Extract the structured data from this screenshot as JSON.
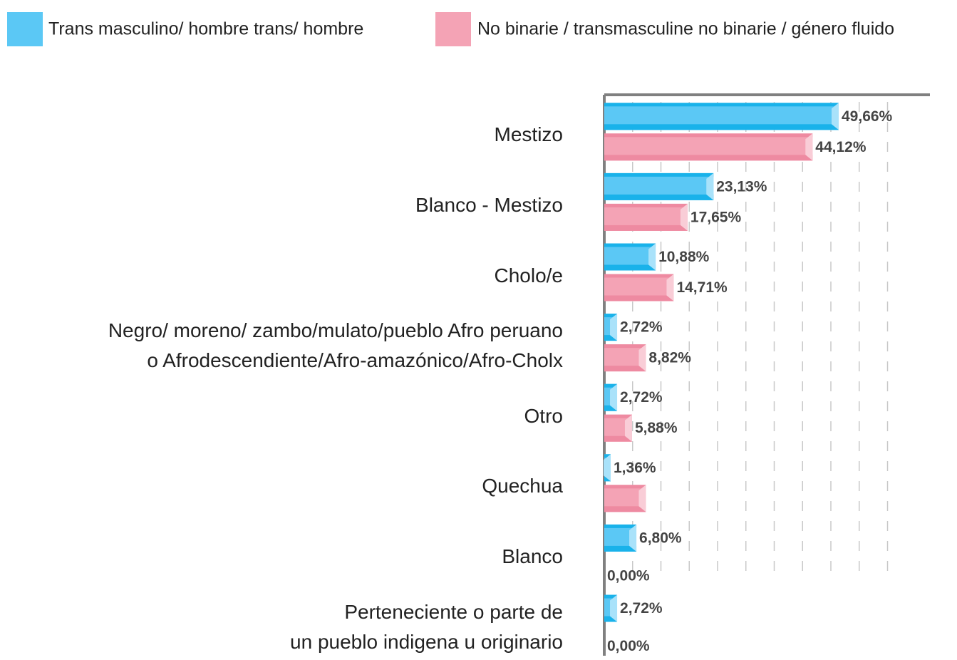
{
  "chart_data": {
    "type": "bar",
    "orientation": "horizontal",
    "categories": [
      "Mestizo",
      "Blanco - Mestizo",
      "Cholo/e",
      "Negro/ moreno/ zambo/mulato/pueblo Afro peruano\no Afrodescendiente/Afro-amazónico/Afro-Cholx",
      "Otro",
      "Quechua",
      "Blanco",
      "Perteneciente o parte de\nun pueblo indigena u originario"
    ],
    "series": [
      {
        "name": "Trans masculino/ hombre trans/ hombre",
        "color": "#5bc8f5",
        "values": [
          49.66,
          23.13,
          10.88,
          2.72,
          2.72,
          1.36,
          6.8,
          2.72
        ],
        "value_labels": [
          "49,66%",
          "23,13%",
          "10,88%",
          "2,72%",
          "2,72%",
          "1,36%",
          "6,80%",
          "2,72%"
        ]
      },
      {
        "name": "No binarie / transmasculine no binarie / género fluido",
        "color": "#f4a3b5",
        "values": [
          44.12,
          17.65,
          14.71,
          8.82,
          5.88,
          8.82,
          0,
          0
        ],
        "value_labels": [
          "44,12%",
          "17,65%",
          "14,71%",
          "8,82%",
          "5,88%",
          null,
          "0,00%",
          "0,00%"
        ]
      }
    ],
    "xlim": [
      0,
      69
    ],
    "xticks": [
      6,
      12,
      18,
      24,
      30,
      36,
      42,
      48,
      54,
      60
    ],
    "grid": true,
    "legend": "top"
  }
}
